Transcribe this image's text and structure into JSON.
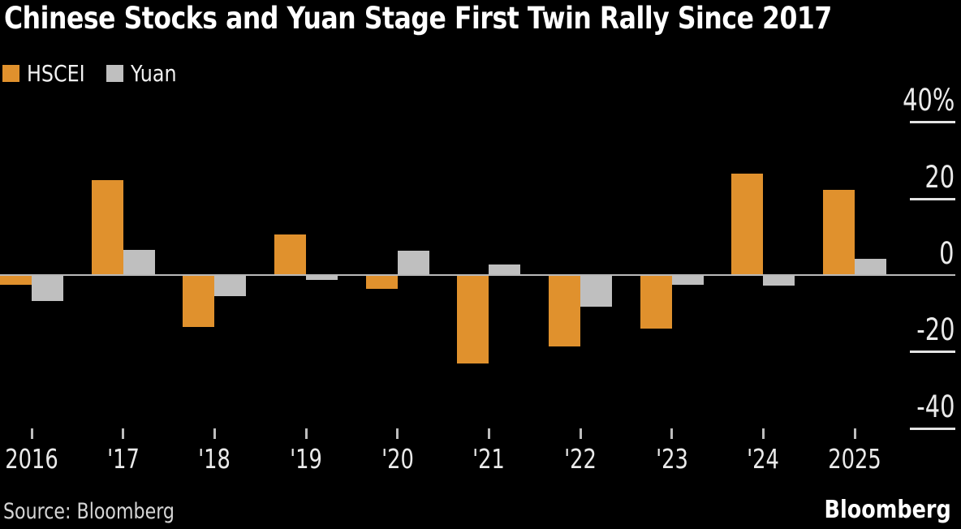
{
  "header": {
    "title": "Chinese Stocks and Yuan Stage First Twin Rally Since 2017"
  },
  "legend": {
    "items": [
      {
        "label": "HSCEI",
        "color": "#E0912D"
      },
      {
        "label": "Yuan",
        "color": "#BFBFBF"
      }
    ]
  },
  "footer": {
    "source": "Source: Bloomberg",
    "brand": "Bloomberg"
  },
  "colors": {
    "background": "#000000",
    "title_text": "#FFFFFF",
    "axis_text": "#EAEAEA",
    "zero_line": "#B9B9B9",
    "y_tick": "#E3E3E3",
    "x_tick": "#BDBDBD",
    "hscei": "#E0912D",
    "yuan": "#BFBFBF"
  },
  "chart_data": {
    "type": "bar",
    "title": "Chinese Stocks and Yuan Stage First Twin Rally Since 2017",
    "categories": [
      "2016",
      "'17",
      "'18",
      "'19",
      "'20",
      "'21",
      "'22",
      "'23",
      "'24",
      "2025"
    ],
    "series": [
      {
        "name": "HSCEI",
        "color": "#E0912D",
        "values": [
          -2.5,
          24.9,
          -13.5,
          10.6,
          -3.5,
          -23.2,
          -18.6,
          -14.0,
          26.5,
          22.3
        ]
      },
      {
        "name": "Yuan",
        "color": "#BFBFBF",
        "values": [
          -6.8,
          6.6,
          -5.5,
          -1.2,
          6.4,
          2.7,
          -8.3,
          -2.6,
          -2.8,
          4.3
        ]
      }
    ],
    "xlabel": "",
    "ylabel": "",
    "yticks": [
      {
        "value": 40,
        "label": "40%"
      },
      {
        "value": 20,
        "label": "20"
      },
      {
        "value": 0,
        "label": "0"
      },
      {
        "value": -20,
        "label": "-20"
      },
      {
        "value": -40,
        "label": "-40"
      }
    ],
    "ylim": [
      -48,
      44
    ],
    "grid": false,
    "legend_position": "top-left",
    "axis_side": "right",
    "baseline": 0
  }
}
